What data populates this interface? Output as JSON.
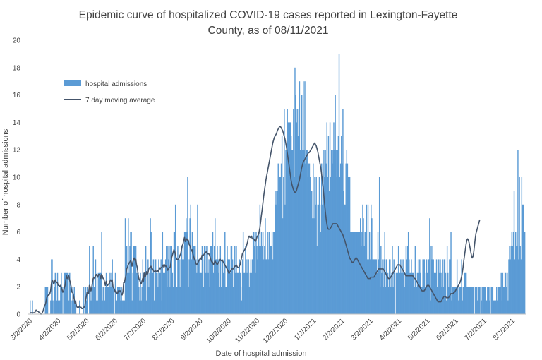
{
  "chart_data": {
    "type": "bar",
    "title_line1": "Epidemic curve of hospitalized COVID-19 cases reported in Lexington-Fayette",
    "title_line2": "County, as of 08/11/2021",
    "xlabel": "Date of hospital admission",
    "ylabel": "Number of hospital admissions",
    "ylim": [
      0,
      20
    ],
    "y_ticks": [
      "0",
      "2",
      "4",
      "6",
      "8",
      "10",
      "12",
      "14",
      "16",
      "18",
      "20"
    ],
    "x_ticks": [
      "3/2/2020",
      "4/2/2020",
      "5/2/2020",
      "6/2/2020",
      "7/2/2020",
      "8/2/2020",
      "9/2/2020",
      "10/2/2020",
      "11/2/2020",
      "12/2/2020",
      "1/2/2021",
      "2/2/2021",
      "3/2/2021",
      "4/2/2021",
      "5/2/2021",
      "6/2/2021",
      "7/2/2021",
      "8/2/2021"
    ],
    "grid": false,
    "legend_placement": "top-left",
    "colors": {
      "bars": "#5b9bd5",
      "line": "#44546a"
    },
    "series": [
      {
        "name": "hospital admissions",
        "type": "bar",
        "values": [
          1,
          0,
          0,
          1,
          0,
          0,
          0,
          0,
          0,
          0,
          0,
          0,
          0,
          0,
          0,
          0,
          0,
          0,
          0,
          0,
          2,
          2,
          0,
          2,
          0,
          0,
          0,
          1,
          4,
          4,
          1,
          0,
          2,
          3,
          2,
          1,
          3,
          1,
          1,
          1,
          2,
          3,
          2,
          0,
          2,
          3,
          3,
          3,
          3,
          3,
          3,
          1,
          3,
          2,
          0,
          1,
          2,
          1,
          2,
          1,
          1,
          0,
          0,
          0,
          0,
          1,
          0,
          0,
          0,
          0,
          2,
          0,
          2,
          2,
          1,
          2,
          0,
          0,
          5,
          2,
          1,
          2,
          2,
          5,
          2,
          2,
          4,
          1,
          3,
          1,
          3,
          3,
          3,
          3,
          6,
          1,
          2,
          2,
          1,
          2,
          3,
          1,
          2,
          2,
          2,
          3,
          2,
          3,
          4,
          2,
          2,
          0,
          3,
          1,
          1,
          2,
          2,
          2,
          2,
          1,
          2,
          1,
          1,
          1,
          1,
          7,
          1,
          5,
          3,
          7,
          3,
          5,
          6,
          6,
          1,
          3,
          5,
          5,
          4,
          5,
          3,
          3,
          3,
          2,
          1,
          3,
          1,
          2,
          4,
          3,
          3,
          2,
          5,
          1,
          2,
          4,
          2,
          3,
          7,
          6,
          3,
          3,
          4,
          1,
          4,
          4,
          3,
          3,
          2,
          4,
          3,
          3,
          4,
          1,
          6,
          3,
          3,
          3,
          4,
          5,
          2,
          5,
          4,
          2,
          5,
          2,
          5,
          3,
          2,
          6,
          6,
          8,
          2,
          2,
          5,
          4,
          4,
          2,
          4,
          5,
          4,
          5,
          4,
          6,
          6,
          7,
          6,
          10,
          2,
          4,
          7,
          8,
          4,
          6,
          5,
          5,
          5,
          5,
          4,
          3,
          8,
          4,
          4,
          3,
          3,
          3,
          5,
          4,
          2,
          5,
          5,
          3,
          5,
          5,
          3,
          4,
          2,
          5,
          5,
          5,
          6,
          3,
          5,
          7,
          4,
          4,
          5,
          4,
          3,
          2,
          5,
          2,
          4,
          4,
          3,
          4,
          6,
          2,
          2,
          5,
          4,
          4,
          4,
          3,
          5,
          5,
          4,
          2,
          3,
          5,
          3,
          5,
          3,
          3,
          3,
          4,
          3,
          2,
          1,
          4,
          6,
          3,
          3,
          5,
          4,
          3,
          4,
          4,
          2,
          3,
          4,
          3,
          4,
          6,
          6,
          5,
          3,
          6,
          5,
          4,
          6,
          5,
          8,
          5,
          6,
          5,
          6,
          4,
          5,
          7,
          4,
          4,
          6,
          4,
          6,
          5,
          5,
          5,
          6,
          4,
          6,
          6,
          8,
          9,
          8,
          9,
          11,
          8,
          10,
          10,
          11,
          13,
          7,
          10,
          15,
          8,
          12,
          12,
          15,
          14,
          10,
          14,
          14,
          13,
          12,
          12,
          15,
          10,
          18,
          16,
          14,
          15,
          13,
          15,
          17,
          12,
          11,
          16,
          12,
          17,
          12,
          17,
          11,
          12,
          12,
          10,
          11,
          11,
          10,
          9,
          9,
          7,
          11,
          7,
          10,
          8,
          10,
          5,
          8,
          8,
          10,
          8,
          6,
          11,
          8,
          9,
          12,
          10,
          12,
          11,
          14,
          10,
          13,
          9,
          14,
          10,
          12,
          11,
          12,
          14,
          12,
          16,
          12,
          10,
          12,
          13,
          19,
          10,
          11,
          13,
          11,
          15,
          9,
          8,
          8,
          11,
          12,
          11,
          10,
          8,
          10,
          6,
          6,
          6,
          6,
          6,
          6,
          6,
          6,
          6,
          6,
          6,
          6,
          6,
          7,
          5,
          6,
          8,
          7,
          5,
          6,
          6,
          8,
          4,
          8,
          4,
          6,
          4,
          8,
          7,
          4,
          4,
          4,
          4,
          4,
          4,
          3,
          6,
          4,
          10,
          2,
          5,
          3,
          4,
          2,
          4,
          6,
          2,
          4,
          2,
          3,
          2,
          4,
          4,
          2,
          3,
          5,
          2,
          4,
          3,
          0,
          3,
          3,
          3,
          5,
          3,
          3,
          4,
          3,
          3,
          4,
          3,
          2,
          3,
          5,
          4,
          5,
          6,
          4,
          3,
          3,
          4,
          3,
          3,
          3,
          2,
          5,
          3,
          2,
          3,
          4,
          3,
          4,
          3,
          2,
          2,
          4,
          4,
          4,
          2,
          3,
          4,
          3,
          4,
          4,
          7,
          1,
          5,
          4,
          5,
          4,
          3,
          3,
          3,
          4,
          2,
          3,
          4,
          3,
          4,
          3,
          2,
          4,
          2,
          4,
          4,
          3,
          1,
          5,
          3,
          2,
          4,
          4,
          6,
          1,
          2,
          2,
          1,
          2,
          2,
          2,
          4,
          2,
          1,
          2,
          2,
          2,
          4,
          1,
          2,
          2,
          3,
          3,
          3,
          2,
          2,
          2,
          2,
          2,
          2,
          2,
          2,
          2,
          2,
          0,
          2,
          1,
          2,
          1,
          2,
          2,
          2,
          0,
          1,
          2,
          0,
          2,
          2,
          2,
          1,
          1,
          2,
          2,
          2,
          1,
          0,
          2,
          2,
          2,
          1,
          1,
          1,
          1,
          2,
          1,
          2,
          2,
          2,
          2,
          3,
          1,
          3,
          2,
          2,
          3,
          3,
          2,
          3,
          1,
          4,
          5,
          4,
          5,
          6,
          5,
          6,
          9,
          4,
          6,
          5,
          5,
          12,
          4,
          10,
          5,
          4,
          10,
          8,
          8,
          5,
          6
        ]
      },
      {
        "name": "7 day moving average",
        "type": "line",
        "values": [
          0.1,
          0.1,
          0.1,
          0.1,
          0.1,
          0.1,
          0.1,
          0.2,
          0.3,
          0.2,
          0.2,
          0.2,
          0.1,
          0.1,
          0.0,
          0.0,
          0.1,
          0.2,
          0.4,
          0.6,
          0.7,
          0.9,
          1.2,
          1.3,
          1.4,
          1.4,
          1.5,
          1.7,
          2.2,
          2.5,
          2.4,
          2.2,
          2.3,
          2.5,
          2.4,
          2.3,
          2.3,
          2.1,
          2.1,
          2.0,
          2.1,
          2.0,
          1.8,
          1.6,
          1.7,
          1.9,
          2.1,
          2.5,
          2.8,
          2.6,
          2.7,
          2.8,
          2.5,
          2.3,
          2.0,
          1.6,
          1.6,
          1.4,
          1.1,
          0.8,
          0.9,
          0.6,
          0.5,
          0.5,
          0.5,
          0.6,
          0.5,
          0.5,
          0.4,
          0.4,
          0.5,
          0.5,
          0.6,
          1.0,
          1.3,
          1.6,
          1.5,
          1.5,
          2.1,
          2.0,
          1.7,
          1.9,
          2.3,
          2.6,
          2.7,
          2.6,
          2.8,
          2.9,
          2.8,
          2.7,
          2.9,
          2.9,
          2.8,
          2.6,
          2.9,
          2.8,
          2.6,
          2.6,
          2.3,
          2.1,
          2.4,
          2.2,
          2.1,
          2.2,
          2.2,
          2.4,
          2.5,
          2.4,
          2.5,
          2.0,
          1.9,
          1.8,
          1.6,
          1.7,
          1.5,
          1.5,
          1.7,
          1.7,
          1.7,
          1.7,
          1.5,
          1.4,
          1.6,
          2.3,
          2.3,
          2.6,
          2.8,
          3.3,
          3.4,
          3.6,
          3.7,
          3.8,
          3.9,
          3.8,
          3.5,
          3.8,
          4.0,
          4.1,
          3.9,
          4.0,
          3.6,
          3.4,
          2.9,
          2.6,
          2.5,
          2.3,
          2.2,
          2.4,
          2.6,
          2.4,
          3.0,
          2.7,
          2.8,
          3.1,
          2.9,
          3.0,
          3.3,
          3.4,
          3.4,
          3.5,
          3.3,
          3.3,
          3.2,
          3.1,
          3.1,
          3.2,
          3.1,
          3.1,
          3.2,
          3.1,
          3.4,
          3.3,
          3.4,
          3.4,
          3.5,
          3.6,
          3.4,
          3.6,
          3.5,
          3.5,
          3.4,
          3.2,
          3.3,
          3.4,
          3.4,
          3.7,
          4.1,
          4.3,
          4.5,
          4.7,
          4.6,
          4.4,
          4.1,
          4.0,
          4.0,
          4.0,
          4.1,
          4.3,
          4.4,
          4.7,
          5.0,
          5.1,
          5.4,
          5.6,
          5.3,
          5.4,
          5.5,
          5.4,
          5.4,
          5.1,
          5.0,
          4.8,
          4.6,
          4.7,
          4.4,
          4.2,
          4.0,
          3.9,
          3.7,
          3.6,
          3.7,
          3.8,
          3.9,
          4.0,
          4.1,
          4.0,
          4.3,
          4.3,
          4.3,
          4.4,
          4.5,
          4.5,
          4.6,
          4.4,
          4.4,
          4.4,
          4.3,
          4.1,
          3.9,
          3.8,
          3.8,
          3.6,
          3.7,
          3.9,
          3.8,
          3.7,
          3.6,
          3.7,
          3.8,
          3.9,
          4.0,
          3.9,
          3.9,
          3.9,
          3.8,
          3.7,
          3.6,
          3.5,
          3.4,
          3.3,
          3.2,
          3.0,
          3.0,
          3.1,
          3.2,
          3.3,
          3.3,
          3.3,
          3.4,
          3.5,
          3.5,
          3.6,
          3.5,
          3.4,
          3.4,
          3.5,
          3.6,
          3.9,
          4.1,
          4.4,
          4.5,
          4.6,
          4.7,
          4.8,
          4.9,
          5.1,
          5.3,
          5.6,
          5.7,
          5.6,
          5.6,
          5.7,
          5.5,
          5.5,
          5.5,
          5.4,
          5.3,
          5.4,
          5.6,
          5.7,
          5.8,
          6.0,
          6.3,
          6.7,
          7.2,
          7.6,
          8.1,
          8.6,
          9.0,
          9.4,
          9.8,
          10.1,
          10.4,
          10.7,
          11.0,
          11.3,
          11.6,
          11.9,
          12.2,
          12.5,
          12.7,
          12.9,
          13.0,
          13.1,
          13.2,
          13.4,
          13.5,
          13.6,
          13.7,
          13.7,
          13.6,
          13.5,
          13.4,
          13.2,
          13.0,
          12.8,
          12.5,
          12.2,
          11.8,
          11.4,
          11.0,
          10.6,
          10.2,
          9.8,
          9.5,
          9.3,
          9.1,
          9.0,
          8.9,
          8.9,
          9.0,
          9.2,
          9.4,
          9.6,
          9.8,
          10.1,
          10.4,
          10.7,
          10.9,
          11.1,
          11.2,
          11.3,
          11.4,
          11.5,
          11.6,
          11.7,
          11.8,
          11.8,
          11.9,
          12.0,
          12.1,
          12.2,
          12.3,
          12.4,
          12.5,
          12.4,
          12.3,
          12.1,
          11.9,
          11.6,
          11.3,
          11.0,
          10.7,
          10.3,
          9.8,
          9.3,
          8.7,
          8.1,
          7.5,
          7.0,
          6.6,
          6.3,
          6.2,
          6.2,
          6.2,
          6.3,
          6.4,
          6.5,
          6.6,
          6.6,
          6.6,
          6.6,
          6.6,
          6.6,
          6.5,
          6.4,
          6.3,
          6.2,
          6.1,
          6.0,
          5.9,
          5.8,
          5.6,
          5.5,
          5.3,
          5.1,
          4.9,
          4.7,
          4.5,
          4.3,
          4.1,
          4.0,
          3.9,
          3.8,
          3.8,
          3.8,
          3.9,
          4.0,
          4.1,
          4.1,
          4.0,
          3.9,
          3.8,
          3.7,
          3.6,
          3.5,
          3.4,
          3.3,
          3.2,
          3.1,
          3.0,
          2.9,
          2.8,
          2.7,
          2.6,
          2.6,
          2.6,
          2.6,
          2.7,
          2.7,
          2.7,
          2.7,
          2.7,
          2.8,
          2.9,
          3.0,
          3.1,
          3.2,
          3.3,
          3.3,
          3.3,
          3.3,
          3.3,
          3.3,
          3.3,
          3.2,
          3.1,
          3.0,
          2.9,
          2.8,
          2.7,
          2.6,
          2.6,
          2.6,
          2.7,
          2.8,
          2.9,
          3.0,
          3.1,
          3.2,
          3.3,
          3.4,
          3.5,
          3.6,
          3.6,
          3.6,
          3.6,
          3.5,
          3.4,
          3.3,
          3.2,
          3.1,
          3.0,
          2.9,
          2.8,
          2.8,
          2.8,
          2.8,
          2.8,
          2.8,
          2.8,
          2.8,
          2.8,
          2.8,
          2.7,
          2.6,
          2.6,
          2.5,
          2.4,
          2.3,
          2.2,
          2.1,
          2.0,
          1.9,
          1.8,
          1.7,
          1.7,
          1.7,
          1.7,
          1.8,
          1.9,
          2.0,
          2.1,
          2.1,
          2.1,
          2.0,
          1.9,
          1.8,
          1.7,
          1.6,
          1.5,
          1.4,
          1.3,
          1.2,
          1.1,
          1.0,
          0.9,
          0.9,
          0.9,
          0.9,
          0.9,
          1.0,
          1.1,
          1.2,
          1.3,
          1.3,
          1.3,
          1.2,
          1.2,
          1.2,
          1.2,
          1.3,
          1.4,
          1.5,
          1.5,
          1.5,
          1.5,
          1.6,
          1.6,
          1.7,
          1.8,
          1.9,
          2.0,
          2.1,
          2.2,
          2.3,
          2.5,
          2.7,
          3.0,
          3.4,
          3.9,
          4.3,
          4.7,
          5.1,
          5.4,
          5.5,
          5.4,
          5.2,
          4.9,
          4.6,
          4.3,
          4.1,
          4.2,
          4.5,
          5.0,
          5.5,
          5.9,
          6.1,
          6.3,
          6.5,
          6.7,
          6.9
        ]
      }
    ]
  }
}
